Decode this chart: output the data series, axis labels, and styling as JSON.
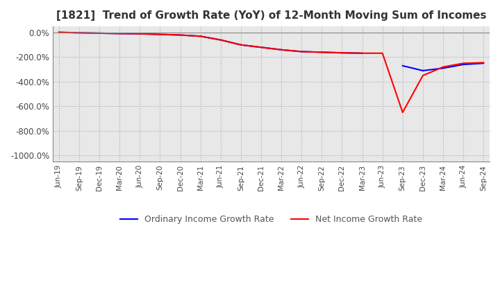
{
  "title": "[1821]  Trend of Growth Rate (YoY) of 12-Month Moving Sum of Incomes",
  "title_fontsize": 11,
  "ylim": [
    -1050,
    50
  ],
  "yticks": [
    0,
    -200,
    -400,
    -600,
    -800,
    -1000
  ],
  "ytick_labels": [
    "0.0%",
    "-200.0%",
    "-400.0%",
    "-600.0%",
    "-800.0%",
    "-1000.0%"
  ],
  "background_color": "#ffffff",
  "plot_bg_color": "#e8e8e8",
  "grid_color": "#aaaaaa",
  "ordinary_income_color": "#0000ff",
  "net_income_color": "#ff0000",
  "legend_labels": [
    "Ordinary Income Growth Rate",
    "Net Income Growth Rate"
  ],
  "x_labels": [
    "Jun-19",
    "Sep-19",
    "Dec-19",
    "Mar-20",
    "Jun-20",
    "Sep-20",
    "Dec-20",
    "Mar-21",
    "Jun-21",
    "Sep-21",
    "Dec-21",
    "Mar-22",
    "Jun-22",
    "Sep-22",
    "Dec-22",
    "Mar-23",
    "Jun-23",
    "Sep-23",
    "Dec-23",
    "Mar-24",
    "Jun-24",
    "Sep-24"
  ],
  "ordinary_income_data": [
    2.0,
    -2.0,
    -5.0,
    -8.0,
    -10.0,
    -15.0,
    -20.0,
    -30.0,
    -60.0,
    -100.0,
    -120.0,
    -140.0,
    -155.0,
    -160.0,
    -165.0,
    -168.0,
    null,
    -270.0,
    -310.0,
    -290.0,
    -260.0,
    -250.0
  ],
  "net_income_data": [
    1.0,
    -2.0,
    -5.0,
    -8.0,
    -10.0,
    -15.0,
    -20.0,
    -30.0,
    -60.0,
    -100.0,
    -120.0,
    -140.0,
    -155.0,
    -160.0,
    -165.0,
    -168.0,
    -168.0,
    -650.0,
    -350.0,
    -280.0,
    -250.0,
    -245.0
  ]
}
